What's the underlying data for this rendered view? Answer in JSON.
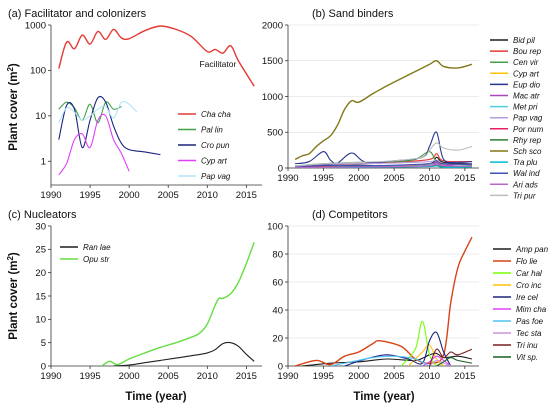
{
  "figure": {
    "y_label_shared": "Plant cover (m",
    "y_label_sup": "2",
    "y_label_close": ")",
    "x_label_shared": "Time (year)"
  },
  "chart_data": [
    {
      "id": "a",
      "type": "line",
      "title": "(a) Facilitator and colonizers",
      "yscale": "log",
      "xlim": [
        1990,
        2017
      ],
      "ylim": [
        0.3,
        1000
      ],
      "yticks": [
        1,
        10,
        100,
        1000
      ],
      "xticks": [
        1990,
        1995,
        2000,
        2005,
        2010,
        2015
      ],
      "grid": false,
      "legend": "lower-right",
      "annotations": [
        {
          "text": "Facilitator",
          "x": 2009,
          "y": 120
        }
      ],
      "series": [
        {
          "name": "Cha cha",
          "color": "#e53935",
          "x": [
            1991,
            1992,
            1993,
            1994,
            1995,
            1996,
            1997,
            1998,
            1999,
            2000,
            2002,
            2004,
            2006,
            2008,
            2010,
            2011,
            2012,
            2013,
            2014,
            2016
          ],
          "y": [
            110,
            420,
            300,
            600,
            380,
            720,
            480,
            800,
            520,
            500,
            750,
            950,
            800,
            550,
            260,
            290,
            240,
            350,
            160,
            45
          ]
        },
        {
          "name": "Pal lin",
          "color": "#43a047",
          "x": [
            1991,
            1992,
            1993,
            1994,
            1995,
            1996,
            1997,
            1998,
            1999
          ],
          "y": [
            14,
            20,
            15,
            8,
            18,
            7,
            20,
            14,
            16
          ]
        },
        {
          "name": "Cro pun",
          "color": "#1a237e",
          "x": [
            1991,
            1992,
            1993,
            1994,
            1995,
            1996,
            1997,
            1998,
            1999,
            2000,
            2002,
            2004
          ],
          "y": [
            3,
            17,
            14,
            2,
            8,
            25,
            20,
            6,
            2.5,
            1.8,
            1.6,
            1.4
          ]
        },
        {
          "name": "Cyp art",
          "color": "#e040fb",
          "x": [
            1991,
            1992,
            1993,
            1994,
            1995,
            1996,
            1997,
            1998,
            1999,
            2000
          ],
          "y": [
            0.5,
            0.9,
            3,
            4,
            2,
            8,
            10,
            3,
            1.5,
            0.6
          ]
        },
        {
          "name": "Pap vag",
          "color": "#b3e5fc",
          "x": [
            1991,
            1992,
            1993,
            1994,
            1995,
            1996,
            1997,
            1998,
            1999,
            2000,
            2001
          ],
          "y": [
            7,
            15,
            12,
            8,
            10,
            14,
            16,
            9,
            20,
            18,
            12
          ]
        }
      ]
    },
    {
      "id": "b",
      "type": "line",
      "title": "(b) Sand binders",
      "yscale": "linear",
      "xlim": [
        1990,
        2017
      ],
      "ylim": [
        0,
        2000
      ],
      "yticks": [
        0,
        500,
        1000,
        1500,
        2000
      ],
      "xticks": [
        1990,
        1995,
        2000,
        2005,
        2010,
        2015
      ],
      "grid": true,
      "legend": "right-outside",
      "series": [
        {
          "name": "Bid pil",
          "color": "#1f1f1f",
          "x": [
            1991,
            1995,
            2000,
            2005,
            2010,
            2011,
            2012,
            2016
          ],
          "y": [
            10,
            30,
            40,
            30,
            60,
            150,
            80,
            60
          ]
        },
        {
          "name": "Bou rep",
          "color": "#e53935",
          "x": [
            1991,
            1995,
            2000,
            2005,
            2010,
            2011,
            2012,
            2016
          ],
          "y": [
            20,
            40,
            60,
            80,
            120,
            200,
            100,
            90
          ]
        },
        {
          "name": "Cen vir",
          "color": "#43a047",
          "x": [
            1991,
            1995,
            2000,
            2005,
            2008,
            2010,
            2011,
            2012,
            2016
          ],
          "y": [
            30,
            60,
            80,
            90,
            120,
            230,
            80,
            60,
            40
          ]
        },
        {
          "name": "Cyp art",
          "color": "#ffc107",
          "x": [
            1991,
            1995,
            2000,
            2005,
            2010,
            2011,
            2012,
            2016
          ],
          "y": [
            5,
            10,
            20,
            30,
            60,
            90,
            30,
            20
          ]
        },
        {
          "name": "Eup dio",
          "color": "#283593",
          "x": [
            1991,
            1993,
            1995,
            1996,
            1997,
            1999,
            2001,
            2005,
            2009,
            2010,
            2011,
            2012,
            2014,
            2016
          ],
          "y": [
            60,
            90,
            230,
            110,
            70,
            210,
            80,
            100,
            150,
            300,
            500,
            120,
            80,
            90
          ]
        },
        {
          "name": "Mac atr",
          "color": "#ab47bc",
          "x": [
            1991,
            1995,
            2000,
            2005,
            2010,
            2011,
            2012,
            2016
          ],
          "y": [
            5,
            15,
            10,
            20,
            40,
            80,
            40,
            60
          ]
        },
        {
          "name": "Met pri",
          "color": "#4dd0e1",
          "x": [
            1991,
            1995,
            2000,
            2005,
            2010,
            2011,
            2012,
            2016
          ],
          "y": [
            10,
            20,
            30,
            25,
            40,
            50,
            20,
            25
          ]
        },
        {
          "name": "Pap vag",
          "color": "#b39ddb",
          "x": [
            1991,
            1995,
            2000,
            2005,
            2010,
            2011,
            2012,
            2016
          ],
          "y": [
            20,
            50,
            60,
            70,
            90,
            110,
            60,
            50
          ]
        },
        {
          "name": "Por num",
          "color": "#e91e63",
          "x": [
            1991,
            1995,
            2000,
            2005,
            2010,
            2011,
            2012,
            2016
          ],
          "y": [
            10,
            20,
            15,
            20,
            30,
            40,
            15,
            20
          ]
        },
        {
          "name": "Rhy rep",
          "color": "#2e7d32",
          "x": [
            1991,
            1995,
            2000,
            2005,
            2010,
            2011,
            2012,
            2016
          ],
          "y": [
            5,
            10,
            20,
            15,
            25,
            30,
            20,
            20
          ]
        },
        {
          "name": "Sch sco",
          "color": "#827717",
          "x": [
            1991,
            1992,
            1993,
            1994,
            1995,
            1996,
            1997,
            1998,
            1999,
            2000,
            2002,
            2004,
            2006,
            2008,
            2010,
            2011,
            2012,
            2014,
            2016
          ],
          "y": [
            120,
            170,
            200,
            300,
            380,
            450,
            600,
            820,
            940,
            920,
            1040,
            1150,
            1250,
            1350,
            1450,
            1500,
            1420,
            1400,
            1450
          ]
        },
        {
          "name": "Tra plu",
          "color": "#00bcd4",
          "x": [
            1991,
            1995,
            2000,
            2005,
            2010,
            2011,
            2012,
            2016
          ],
          "y": [
            5,
            10,
            10,
            15,
            20,
            30,
            10,
            15
          ]
        },
        {
          "name": "Wal ind",
          "color": "#3f51b5",
          "x": [
            1991,
            1995,
            2000,
            2005,
            2010,
            2011,
            2012,
            2016
          ],
          "y": [
            10,
            40,
            30,
            40,
            60,
            100,
            60,
            50
          ]
        },
        {
          "name": "Ari ads",
          "color": "#ba68c8",
          "x": [
            1991,
            1995,
            2000,
            2005,
            2010,
            2011,
            2012,
            2016
          ],
          "y": [
            5,
            10,
            15,
            20,
            30,
            60,
            30,
            25
          ]
        },
        {
          "name": "Tri pur",
          "color": "#bdbdbd",
          "x": [
            1991,
            1995,
            2000,
            2005,
            2009,
            2010,
            2011,
            2012,
            2014,
            2016
          ],
          "y": [
            30,
            60,
            80,
            100,
            150,
            250,
            350,
            280,
            250,
            300
          ]
        }
      ]
    },
    {
      "id": "c",
      "type": "line",
      "title": "(c) Nucleators",
      "yscale": "linear",
      "xlim": [
        1990,
        2017
      ],
      "ylim": [
        0,
        30
      ],
      "yticks": [
        0,
        5,
        10,
        15,
        20,
        25,
        30
      ],
      "xticks": [
        1990,
        1995,
        2000,
        2005,
        2010,
        2015
      ],
      "grid": false,
      "legend": "top-left",
      "series": [
        {
          "name": "Ran lae",
          "color": "#1f1f1f",
          "x": [
            1998,
            2000,
            2002,
            2004,
            2006,
            2008,
            2010,
            2011,
            2012,
            2013,
            2014,
            2015,
            2016
          ],
          "y": [
            0,
            0.2,
            0.7,
            1.2,
            1.7,
            2.2,
            2.8,
            3.5,
            4.8,
            5,
            4.2,
            2.5,
            1
          ]
        },
        {
          "name": "Opu str",
          "color": "#66dd44",
          "x": [
            1996.5,
            1997.5,
            1998.5,
            2000,
            2002,
            2004,
            2006,
            2008,
            2009,
            2010,
            2011,
            2011.5,
            2012,
            2013,
            2014,
            2015,
            2016
          ],
          "y": [
            0,
            1,
            0.3,
            1.5,
            2.8,
            4,
            5,
            6.2,
            7,
            9,
            13,
            14.5,
            14.5,
            15.5,
            18,
            22,
            26.5
          ]
        }
      ]
    },
    {
      "id": "d",
      "type": "line",
      "title": "(d) Competitors",
      "yscale": "linear",
      "xlim": [
        1990,
        2017
      ],
      "ylim": [
        0,
        100
      ],
      "yticks": [
        0,
        20,
        40,
        60,
        80,
        100
      ],
      "xticks": [
        1990,
        1995,
        2000,
        2005,
        2010,
        2015
      ],
      "grid": true,
      "legend": "right-outside",
      "series": [
        {
          "name": "Amp pan",
          "color": "#1f1f1f",
          "x": [
            1992,
            1996,
            2000,
            2004,
            2008,
            2010,
            2011,
            2012,
            2014,
            2016
          ],
          "y": [
            0,
            2,
            3,
            5,
            4,
            8,
            9,
            6,
            7,
            5
          ]
        },
        {
          "name": "Flo lie",
          "color": "#d84315",
          "x": [
            1991,
            1994,
            1996,
            1998,
            2000,
            2002,
            2003,
            2006,
            2008,
            2010,
            2012,
            2013,
            2014,
            2015,
            2016
          ],
          "y": [
            0,
            4,
            1,
            7,
            10,
            16,
            18,
            14,
            5,
            2,
            8,
            45,
            70,
            82,
            92
          ]
        },
        {
          "name": "Car hal",
          "color": "#76ff03",
          "x": [
            2006,
            2008,
            2009,
            2010,
            2011
          ],
          "y": [
            0,
            12,
            32,
            8,
            0
          ]
        },
        {
          "name": "Cro inc",
          "color": "#ffc107",
          "x": [
            2007,
            2009,
            2010,
            2011,
            2012
          ],
          "y": [
            0,
            10,
            15,
            5,
            0
          ]
        },
        {
          "name": "Ire cel",
          "color": "#1a237e",
          "x": [
            1998,
            2001,
            2004,
            2007,
            2009,
            2010,
            2011,
            2012,
            2013
          ],
          "y": [
            0,
            5,
            8,
            5,
            2,
            18,
            24,
            10,
            0
          ]
        },
        {
          "name": "Mim cha",
          "color": "#e040fb",
          "x": [
            2009,
            2010,
            2011,
            2012,
            2013
          ],
          "y": [
            0,
            3,
            7,
            4,
            0
          ]
        },
        {
          "name": "Pas foe",
          "color": "#4fc3f7",
          "x": [
            1996,
            1999,
            2002,
            2005,
            2008,
            2010
          ],
          "y": [
            0,
            3,
            6,
            7,
            5,
            0
          ]
        },
        {
          "name": "Tec sta",
          "color": "#ce93d8",
          "x": [
            2010,
            2011,
            2012,
            2013
          ],
          "y": [
            0,
            4,
            2,
            0
          ]
        },
        {
          "name": "Tri inu",
          "color": "#7b1f1f",
          "x": [
            2010,
            2011,
            2012,
            2013,
            2014,
            2016
          ],
          "y": [
            0,
            12,
            6,
            10,
            8,
            12
          ]
        },
        {
          "name": "Vit sp.",
          "color": "#1b5e20",
          "x": [
            2011,
            2012,
            2013,
            2014,
            2016
          ],
          "y": [
            0,
            3,
            6,
            4,
            2
          ]
        }
      ]
    }
  ]
}
